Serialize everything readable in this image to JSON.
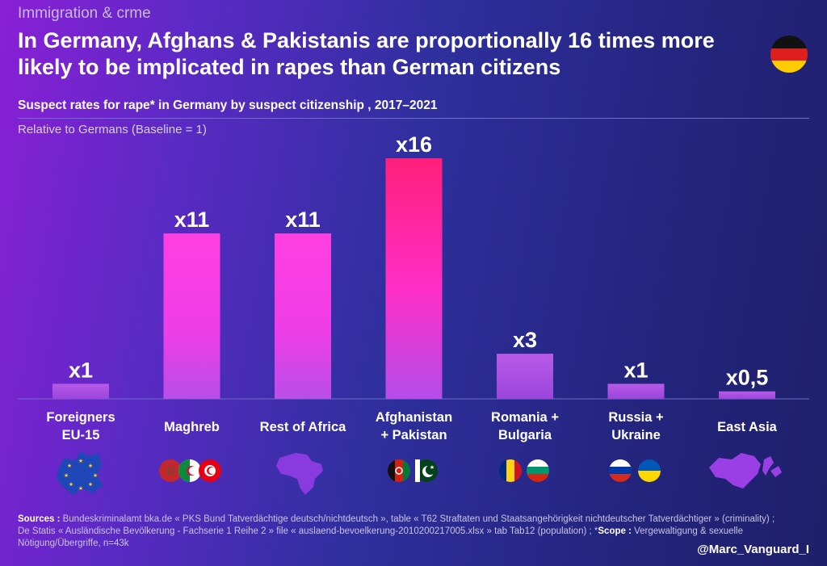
{
  "topic": "Immigration & crme",
  "headline": "In Germany, Afghans & Pakistanis are proportionally 16 times more likely to be implicated in rapes than German citizens",
  "subtitle": "Suspect rates for rape* in Germany by suspect citizenship , 2017–2021",
  "note": "Relative to Germans (Baseline = 1)",
  "sources": {
    "sources_label": "Sources :",
    "sources_text": " Bundeskriminalamt bka.de « PKS Bund Tatverdächtige deutsch/nichtdeutsch », table « T62 Straftaten und Staatsangehörigkeit nichtdeutscher Tatverdächtiger » (criminality) ; De Statis « Ausländische Bevölkerung - Fachserie 1 Reihe 2 » file « auslaend-bevoelkerung-2010200217005.xlsx » tab Tab12 (population) ; *",
    "scope_label": "Scope :",
    "scope_text": " Vergewaltigung & sexuelle Nötigung/Übergriffe, n=43k"
  },
  "handle": "@Marc_Vanguard_I",
  "colors": {
    "bar_top_max": "#ff1f7a",
    "bar_top_high": "#ff3fd8",
    "bar_low": "#a64de0",
    "background": "#2a2a8c"
  },
  "icons": [
    "eu-stars-map-icon",
    "morocco-algeria-tunisia-flags-icon",
    "africa-map-icon",
    "afghanistan-pakistan-flags-icon",
    "romania-bulgaria-flags-icon",
    "russia-ukraine-flags-icon",
    "east-asia-map-icon"
  ],
  "chart_data": {
    "type": "bar",
    "categories": [
      [
        "Foreigners",
        "EU-15"
      ],
      [
        "Maghreb"
      ],
      [
        "Rest of Africa"
      ],
      [
        "Afghanistan",
        "+ Pakistan"
      ],
      [
        "Romania +",
        "Bulgaria"
      ],
      [
        "Russia +",
        "Ukraine"
      ],
      [
        "East Asia"
      ]
    ],
    "values": [
      1,
      11,
      11,
      16,
      3,
      1,
      0.5
    ],
    "value_labels": [
      "x1",
      "x11",
      "x11",
      "x16",
      "x3",
      "x1",
      "x0,5"
    ],
    "ylim": [
      0,
      16
    ],
    "grid": false,
    "legend": "none"
  }
}
